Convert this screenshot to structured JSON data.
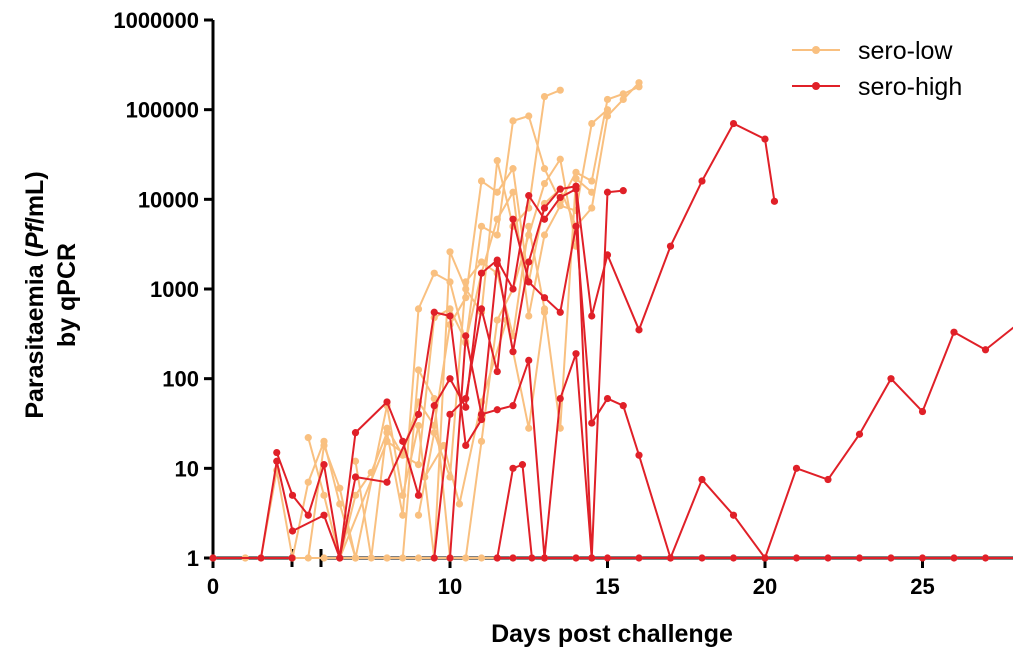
{
  "chart_data": {
    "type": "line",
    "xlabel": "Days post challenge",
    "ylabel_line1_pre": "Parasitaemia (",
    "ylabel_line1_italic": "Pf",
    "ylabel_line1_post": "/mL)",
    "ylabel_line2": "by qPCR",
    "y_scale": "log",
    "ylim": [
      1,
      1000000
    ],
    "xlim": [
      0,
      28
    ],
    "x_axis_break": [
      3,
      3.5
    ],
    "x_ticks": [
      0,
      10,
      15,
      20,
      25
    ],
    "x_tick_labels": [
      "0",
      "10",
      "15",
      "20",
      "25"
    ],
    "y_ticks": [
      1,
      10,
      100,
      1000,
      10000,
      100000,
      1000000
    ],
    "y_tick_labels": [
      "1",
      "10",
      "100",
      "1000",
      "10000",
      "100000",
      "1000000"
    ],
    "legend_position": "top-right",
    "legend": [
      {
        "name": "sero-low",
        "color": "#F9C080"
      },
      {
        "name": "sero-high",
        "color": "#E02028"
      }
    ],
    "series": [
      {
        "group": "sero-low",
        "color": "#F9C080",
        "points": [
          [
            0,
            1
          ],
          [
            3,
            1
          ]
        ]
      },
      {
        "group": "sero-high",
        "color": "#E02028",
        "points": [
          [
            0,
            1
          ],
          [
            3,
            1
          ]
        ]
      },
      {
        "group": "sero-low",
        "color": "#F9C080",
        "points": [
          [
            3.5,
            1
          ],
          [
            6,
            1
          ],
          [
            7,
            1
          ],
          [
            8,
            1
          ],
          [
            9,
            1
          ],
          [
            10,
            1
          ],
          [
            11,
            1
          ],
          [
            12,
            1
          ],
          [
            13,
            1
          ],
          [
            14,
            1
          ]
        ]
      },
      {
        "group": "sero-high",
        "color": "#E02028",
        "points": [
          [
            11.5,
            1
          ],
          [
            12,
            1
          ],
          [
            13,
            1
          ],
          [
            14,
            1
          ],
          [
            15,
            1
          ],
          [
            16,
            1
          ],
          [
            17,
            1
          ],
          [
            18,
            1
          ],
          [
            19,
            1
          ],
          [
            20,
            1
          ],
          [
            21,
            1
          ],
          [
            22,
            1
          ],
          [
            23,
            1
          ],
          [
            24,
            1
          ],
          [
            25,
            1
          ],
          [
            26,
            1
          ],
          [
            27,
            1
          ],
          [
            28,
            1
          ]
        ]
      },
      {
        "group": "sero-low",
        "color": "#F9C080",
        "points": [
          [
            3.5,
            1
          ],
          [
            4,
            1
          ],
          [
            4.5,
            9.5
          ],
          [
            5,
            1
          ],
          [
            5.5,
            1
          ],
          [
            6,
            18
          ],
          [
            6.5,
            6
          ],
          [
            7,
            1
          ],
          [
            8,
            1
          ],
          [
            8.5,
            1
          ],
          [
            9,
            125
          ],
          [
            9.5,
            60
          ],
          [
            10,
            1
          ],
          [
            10.5,
            1
          ],
          [
            11,
            20
          ],
          [
            11.5,
            450
          ],
          [
            12,
            1000
          ],
          [
            12.5,
            4000
          ],
          [
            13,
            15000
          ],
          [
            13.5,
            28000
          ],
          [
            14,
            3000
          ]
        ]
      },
      {
        "group": "sero-low",
        "color": "#F9C080",
        "points": [
          [
            5,
            1
          ],
          [
            5.5,
            7
          ],
          [
            6,
            20
          ],
          [
            6.5,
            4
          ],
          [
            7,
            1
          ],
          [
            8,
            50
          ],
          [
            8.5,
            5
          ],
          [
            9,
            30
          ],
          [
            9.5,
            1
          ],
          [
            10,
            2600
          ],
          [
            10.5,
            1000
          ],
          [
            11,
            550
          ],
          [
            11.5,
            27000
          ],
          [
            12,
            5000
          ],
          [
            12.5,
            8000
          ],
          [
            13,
            140000
          ],
          [
            13.5,
            165000
          ]
        ]
      },
      {
        "group": "sero-low",
        "color": "#F9C080",
        "points": [
          [
            5.5,
            22
          ],
          [
            6,
            5
          ],
          [
            6.5,
            1
          ],
          [
            8,
            20
          ],
          [
            8.5,
            15
          ],
          [
            9,
            55
          ],
          [
            9.5,
            30
          ],
          [
            10,
            400
          ],
          [
            10.5,
            800
          ],
          [
            11,
            16000
          ],
          [
            11.5,
            12000
          ],
          [
            12,
            22000
          ],
          [
            12.5,
            1200
          ],
          [
            13,
            9000
          ],
          [
            13.5,
            13000
          ],
          [
            14,
            5000
          ],
          [
            14.5,
            8000
          ],
          [
            15,
            85000
          ],
          [
            15.5,
            130000
          ],
          [
            16,
            200000
          ]
        ]
      },
      {
        "group": "sero-low",
        "color": "#F9C080",
        "points": [
          [
            6.5,
            1
          ],
          [
            7,
            5
          ],
          [
            7.5,
            9
          ],
          [
            8,
            25
          ],
          [
            8.5,
            3
          ],
          [
            9,
            600
          ],
          [
            9.5,
            1500
          ],
          [
            10,
            1200
          ],
          [
            10.5,
            250
          ],
          [
            11,
            5000
          ],
          [
            11.5,
            4000
          ],
          [
            12,
            75000
          ],
          [
            12.5,
            85000
          ],
          [
            13,
            22000
          ],
          [
            13.5,
            9500
          ],
          [
            14,
            20000
          ],
          [
            14.5,
            16000
          ],
          [
            15,
            130000
          ],
          [
            15.5,
            150000
          ],
          [
            16,
            180000
          ]
        ]
      },
      {
        "group": "sero-low",
        "color": "#F9C080",
        "points": [
          [
            7,
            12
          ],
          [
            7.5,
            1
          ],
          [
            8,
            28
          ],
          [
            8.5,
            14
          ],
          [
            9,
            11
          ],
          [
            9.5,
            480
          ],
          [
            10,
            600
          ],
          [
            10.5,
            260
          ],
          [
            11,
            1500
          ],
          [
            11.5,
            6000
          ],
          [
            12,
            12000
          ],
          [
            12.5,
            500
          ],
          [
            13,
            4000
          ],
          [
            13.5,
            8500
          ],
          [
            14,
            7500
          ],
          [
            14.5,
            70000
          ],
          [
            15,
            100000
          ]
        ]
      },
      {
        "group": "sero-low",
        "color": "#F9C080",
        "points": [
          [
            9,
            3
          ],
          [
            9.5,
            25
          ],
          [
            10,
            8
          ],
          [
            10.5,
            1200
          ],
          [
            11,
            2000
          ],
          [
            11.5,
            1500
          ],
          [
            12,
            300
          ],
          [
            12.5,
            5000
          ],
          [
            13,
            600
          ],
          [
            13.5,
            28
          ],
          [
            14,
            17000
          ],
          [
            14.5,
            12000
          ]
        ]
      },
      {
        "group": "sero-low",
        "color": "#F9C080",
        "points": [
          [
            9.2,
            8
          ],
          [
            9.8,
            18
          ],
          [
            10.3,
            4
          ],
          [
            11,
            55
          ],
          [
            11.8,
            450
          ],
          [
            12.5,
            28
          ],
          [
            13,
            550
          ]
        ]
      },
      {
        "group": "sero-high",
        "color": "#E02028",
        "points": [
          [
            4.5,
            15
          ],
          [
            5,
            5
          ],
          [
            5.5,
            3
          ],
          [
            6,
            11
          ],
          [
            6.5,
            1
          ],
          [
            7,
            25
          ],
          [
            8,
            55
          ],
          [
            8.5,
            20
          ],
          [
            9,
            5
          ],
          [
            9.5,
            50
          ],
          [
            10,
            100
          ],
          [
            10.5,
            48
          ],
          [
            11,
            1500
          ],
          [
            11.5,
            2100
          ],
          [
            12,
            1000
          ],
          [
            12.5,
            11000
          ],
          [
            13,
            6000
          ],
          [
            13.5,
            10500
          ],
          [
            14,
            13000
          ],
          [
            14.5,
            1
          ],
          [
            15,
            12000
          ],
          [
            15.5,
            12500
          ]
        ]
      },
      {
        "group": "sero-high",
        "color": "#E02028",
        "points": [
          [
            4,
            1
          ],
          [
            4.5,
            12
          ],
          [
            5,
            2
          ],
          [
            6,
            3
          ],
          [
            6.5,
            1
          ],
          [
            7,
            8
          ],
          [
            8,
            7
          ],
          [
            9,
            40
          ],
          [
            9.5,
            550
          ],
          [
            10,
            500
          ],
          [
            10.5,
            18
          ],
          [
            11,
            35
          ],
          [
            11.5,
            1900
          ],
          [
            12,
            200
          ],
          [
            12.5,
            2000
          ],
          [
            13,
            8000
          ],
          [
            13.5,
            13000
          ],
          [
            14,
            14000
          ],
          [
            14.5,
            500
          ],
          [
            15,
            2400
          ],
          [
            16,
            350
          ],
          [
            17,
            3000
          ],
          [
            18,
            16000
          ],
          [
            19,
            70000
          ],
          [
            20,
            47000
          ],
          [
            20.3,
            9500
          ]
        ]
      },
      {
        "group": "sero-high",
        "color": "#E02028",
        "points": [
          [
            9.5,
            1
          ],
          [
            10,
            40
          ],
          [
            10.5,
            60
          ],
          [
            11,
            600
          ],
          [
            11.5,
            120
          ],
          [
            12,
            6000
          ],
          [
            12.5,
            1200
          ],
          [
            13,
            800
          ],
          [
            13.5,
            550
          ],
          [
            14,
            5000
          ],
          [
            14.5,
            32
          ],
          [
            15,
            60
          ],
          [
            15.5,
            50
          ],
          [
            16,
            14
          ],
          [
            17,
            1
          ],
          [
            18,
            7.5
          ],
          [
            19,
            3
          ],
          [
            20,
            1
          ],
          [
            21,
            10
          ],
          [
            22,
            7.5
          ],
          [
            23,
            24
          ],
          [
            24,
            100
          ],
          [
            25,
            43
          ],
          [
            26,
            330
          ],
          [
            27,
            210
          ],
          [
            28,
            400
          ]
        ]
      },
      {
        "group": "sero-high",
        "color": "#E02028",
        "points": [
          [
            10,
            1
          ],
          [
            10.5,
            300
          ],
          [
            11,
            40
          ],
          [
            11.5,
            45
          ],
          [
            12,
            50
          ],
          [
            12.5,
            160
          ],
          [
            13,
            1
          ],
          [
            13.5,
            60
          ],
          [
            14,
            190
          ],
          [
            14.5,
            1
          ]
        ]
      },
      {
        "group": "sero-high",
        "color": "#E02028",
        "points": [
          [
            11.5,
            1
          ],
          [
            12,
            10
          ],
          [
            12.3,
            11
          ],
          [
            12.6,
            1
          ]
        ]
      }
    ]
  }
}
